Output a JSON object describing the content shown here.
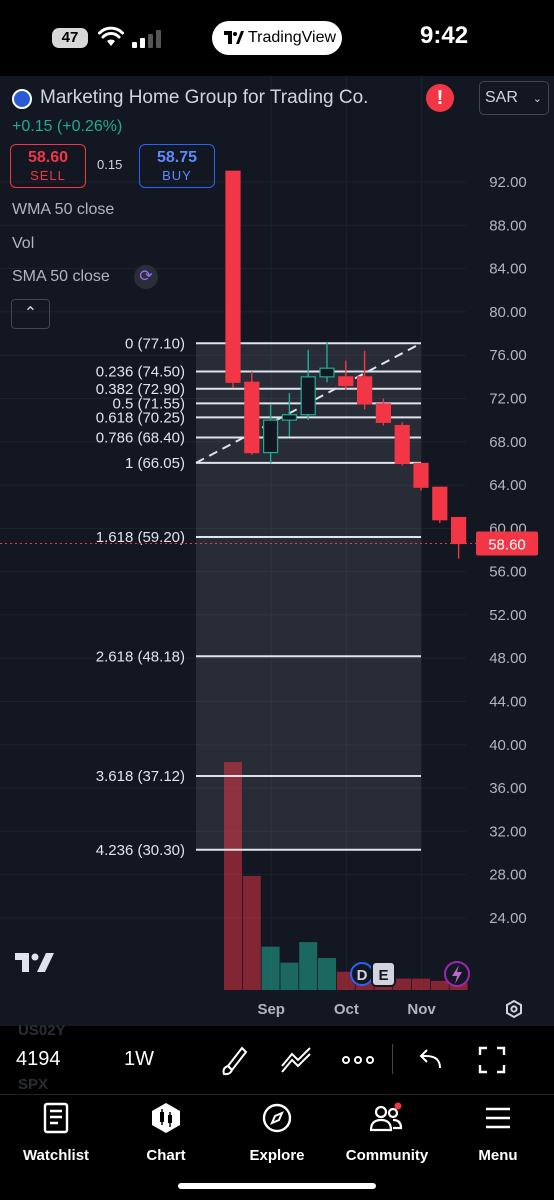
{
  "status_bar": {
    "battery": "47",
    "app_pill": "TradingView",
    "time": "9:42"
  },
  "symbol": {
    "name": "Marketing Home Group for Trading Co.",
    "currency": "SAR",
    "change": "+0.15 (+0.26%)"
  },
  "trade": {
    "sell_price": "58.60",
    "sell_label": "SELL",
    "spread": "0.15",
    "buy_price": "58.75",
    "buy_label": "BUY"
  },
  "indicators": [
    "WMA 50 close",
    "Vol",
    "SMA 50 close"
  ],
  "colors": {
    "background": "#131722",
    "up": "#22ab94",
    "down": "#f23645",
    "buy": "#2962ff",
    "text": "#d1d4dc"
  },
  "chart_data": {
    "type": "candlestick",
    "timeframe": "1W",
    "y_ticks": [
      "92.00",
      "88.00",
      "84.00",
      "80.00",
      "76.00",
      "72.00",
      "68.00",
      "64.00",
      "60.00",
      "56.00",
      "52.00",
      "48.00",
      "44.00",
      "40.00",
      "36.00",
      "32.00",
      "28.00",
      "24.00"
    ],
    "ylim": [
      21.5,
      94.5
    ],
    "x_labels": [
      {
        "label": "Sep",
        "at": 1.5
      },
      {
        "label": "Oct",
        "at": 5.5
      },
      {
        "label": "Nov",
        "at": 9.5
      }
    ],
    "last_price": "58.60",
    "candles": [
      {
        "o": 93.0,
        "h": 93.0,
        "l": 73.0,
        "c": 73.5
      },
      {
        "o": 73.5,
        "h": 74.5,
        "l": 66.8,
        "c": 67.0
      },
      {
        "o": 67.0,
        "h": 71.5,
        "l": 66.0,
        "c": 70.0
      },
      {
        "o": 70.0,
        "h": 72.5,
        "l": 68.5,
        "c": 70.5
      },
      {
        "o": 70.5,
        "h": 76.5,
        "l": 70.0,
        "c": 74.0
      },
      {
        "o": 74.0,
        "h": 77.2,
        "l": 73.5,
        "c": 74.8
      },
      {
        "o": 74.0,
        "h": 75.5,
        "l": 72.8,
        "c": 73.2
      },
      {
        "o": 74.0,
        "h": 76.4,
        "l": 71.0,
        "c": 71.5
      },
      {
        "o": 71.5,
        "h": 72.0,
        "l": 69.5,
        "c": 69.8
      },
      {
        "o": 69.5,
        "h": 69.8,
        "l": 65.8,
        "c": 66.0
      },
      {
        "o": 66.0,
        "h": 66.0,
        "l": 63.5,
        "c": 63.8
      },
      {
        "o": 63.8,
        "h": 63.8,
        "l": 60.5,
        "c": 60.8
      },
      {
        "o": 61.0,
        "h": 61.0,
        "l": 57.2,
        "c": 58.6
      }
    ],
    "volume": {
      "relative": [
        1.0,
        0.5,
        0.19,
        0.12,
        0.21,
        0.14,
        0.08,
        0.08,
        0.06,
        0.05,
        0.05,
        0.04,
        0.03
      ],
      "direction": [
        "down",
        "down",
        "up",
        "up",
        "up",
        "up",
        "down",
        "down",
        "down",
        "down",
        "down",
        "down",
        "down"
      ]
    },
    "fibonacci": [
      {
        "level": "0",
        "price": 77.1,
        "label": "0 (77.10)"
      },
      {
        "level": "0.236",
        "price": 74.5,
        "label": "0.236 (74.50)"
      },
      {
        "level": "0.382",
        "price": 72.9,
        "label": "0.382 (72.90)"
      },
      {
        "level": "0.5",
        "price": 71.55,
        "label": "0.5 (71.55)"
      },
      {
        "level": "0.618",
        "price": 70.25,
        "label": "0.618 (70.25)"
      },
      {
        "level": "0.786",
        "price": 68.4,
        "label": "0.786 (68.40)"
      },
      {
        "level": "1",
        "price": 66.05,
        "label": "1 (66.05)"
      },
      {
        "level": "1.618",
        "price": 59.2,
        "label": "1.618 (59.20)"
      },
      {
        "level": "2.618",
        "price": 48.18,
        "label": "2.618 (48.18)"
      },
      {
        "level": "3.618",
        "price": 37.12,
        "label": "3.618 (37.12)"
      },
      {
        "level": "4.236",
        "price": 30.3,
        "label": "4.236 (30.30)"
      }
    ],
    "trend_line": {
      "from": 66.05,
      "to": 77.1
    },
    "event_markers": [
      "D",
      "E"
    ]
  },
  "toolbar": {
    "us02y": "US02Y",
    "spx_value": "4194",
    "spx": "SPX",
    "timeframe": "1W"
  },
  "tabs": [
    {
      "label": "Watchlist",
      "icon": "watchlist-icon"
    },
    {
      "label": "Chart",
      "icon": "chart-icon"
    },
    {
      "label": "Explore",
      "icon": "compass-icon"
    },
    {
      "label": "Community",
      "icon": "community-icon"
    },
    {
      "label": "Menu",
      "icon": "menu-icon"
    }
  ]
}
